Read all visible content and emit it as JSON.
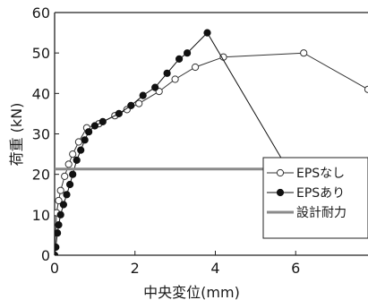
{
  "chart_data": {
    "type": "line",
    "xlabel": "中央変位(mm)",
    "ylabel": "荷重 (kN)",
    "xlim": [
      0,
      7.8
    ],
    "ylim": [
      0,
      60
    ],
    "x_ticks": [
      0,
      2,
      4,
      6
    ],
    "y_ticks": [
      0,
      10,
      20,
      30,
      40,
      50,
      60
    ],
    "grid": false,
    "legend_position": "right",
    "series": [
      {
        "name": "EPSなし",
        "marker": "open-circle",
        "color": "#333333",
        "points": [
          [
            0.0,
            0.0
          ],
          [
            0.05,
            10.5
          ],
          [
            0.1,
            13.5
          ],
          [
            0.15,
            16.0
          ],
          [
            0.25,
            19.5
          ],
          [
            0.35,
            22.5
          ],
          [
            0.45,
            25.0
          ],
          [
            0.6,
            28.0
          ],
          [
            0.8,
            31.5
          ],
          [
            1.1,
            32.5
          ],
          [
            1.5,
            34.5
          ],
          [
            1.8,
            36.0
          ],
          [
            2.1,
            37.5
          ],
          [
            2.6,
            40.5
          ],
          [
            3.0,
            43.5
          ],
          [
            3.5,
            46.5
          ],
          [
            4.2,
            49.0
          ],
          [
            6.2,
            50.0
          ],
          [
            7.8,
            41.0
          ]
        ]
      },
      {
        "name": "EPSあり",
        "marker": "filled-circle",
        "color": "#111111",
        "points": [
          [
            0.0,
            0.0
          ],
          [
            0.03,
            2.0
          ],
          [
            0.07,
            5.5
          ],
          [
            0.1,
            7.5
          ],
          [
            0.15,
            10.0
          ],
          [
            0.22,
            12.5
          ],
          [
            0.3,
            15.0
          ],
          [
            0.38,
            17.5
          ],
          [
            0.45,
            20.0
          ],
          [
            0.55,
            23.5
          ],
          [
            0.65,
            26.0
          ],
          [
            0.75,
            28.5
          ],
          [
            0.85,
            30.5
          ],
          [
            1.0,
            32.0
          ],
          [
            1.2,
            33.0
          ],
          [
            1.6,
            35.0
          ],
          [
            1.9,
            37.0
          ],
          [
            2.2,
            39.5
          ],
          [
            2.5,
            41.5
          ],
          [
            2.8,
            45.0
          ],
          [
            3.1,
            48.5
          ],
          [
            3.3,
            50.0
          ],
          [
            3.8,
            55.0
          ],
          [
            5.7,
            23.0
          ]
        ]
      },
      {
        "name": "設計耐力",
        "marker": "none",
        "color": "#8a8a8a",
        "points": [
          [
            0.0,
            21.3
          ],
          [
            7.8,
            21.3
          ]
        ]
      }
    ]
  }
}
